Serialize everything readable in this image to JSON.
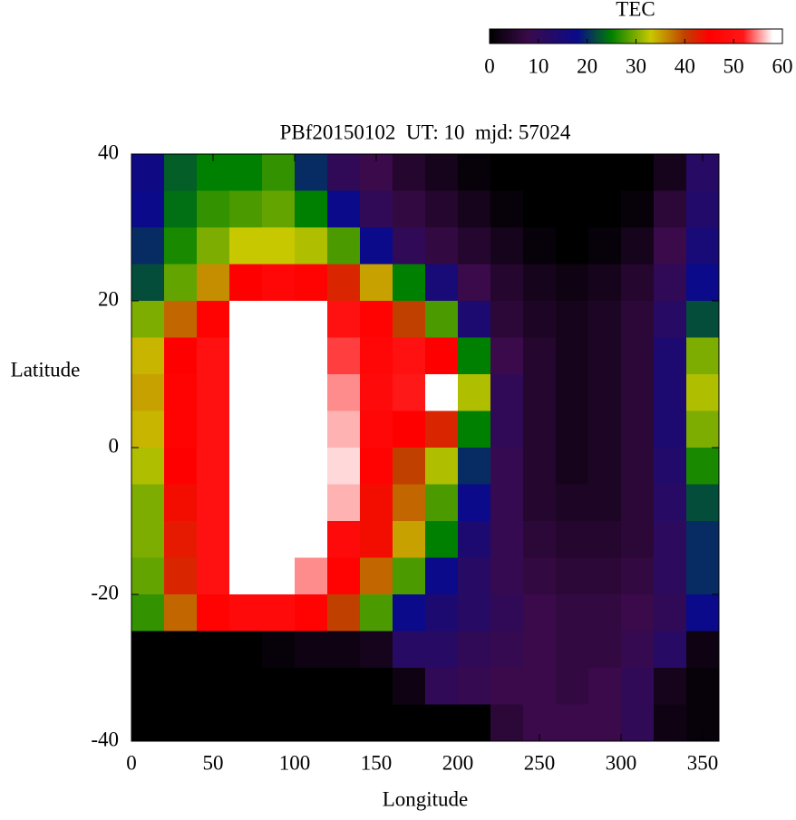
{
  "chart_data": {
    "type": "heatmap",
    "title": "PBf20150102  UT: 10  mjd: 57024",
    "x_label": "Longitude",
    "y_label": "Latitude",
    "x": [
      10,
      30,
      50,
      70,
      90,
      110,
      130,
      150,
      170,
      190,
      210,
      230,
      250,
      270,
      290,
      310,
      330,
      350
    ],
    "y": [
      37.5,
      32.5,
      27.5,
      22.5,
      17.5,
      12.5,
      7.5,
      2.5,
      -2.5,
      -7.5,
      -12.5,
      -17.5,
      -22.5,
      -27.5,
      -32.5,
      -37.5
    ],
    "xlim": [
      0,
      360
    ],
    "xticks": [
      0,
      50,
      100,
      150,
      200,
      250,
      300,
      350
    ],
    "ylim": [
      -40,
      40
    ],
    "yticks": [
      -40,
      -20,
      0,
      20,
      40
    ],
    "values": [
      [
        17,
        23,
        25,
        25,
        27,
        20,
        10,
        8,
        5,
        3,
        1,
        0,
        0,
        0,
        0,
        0,
        3,
        12
      ],
      [
        18,
        24,
        27,
        28,
        29,
        25,
        18,
        10,
        7,
        5,
        3,
        1,
        0,
        0,
        0,
        1,
        6,
        13
      ],
      [
        20,
        26,
        30,
        33,
        33,
        32,
        28,
        18,
        10,
        7,
        5,
        3,
        1,
        0,
        1,
        3,
        8,
        15
      ],
      [
        22,
        29,
        36,
        45,
        47,
        46,
        42,
        35,
        25,
        15,
        8,
        5,
        3,
        2,
        3,
        5,
        10,
        18
      ],
      [
        30,
        38,
        46,
        58,
        60,
        60,
        50,
        46,
        40,
        28,
        14,
        6,
        4,
        3,
        4,
        6,
        12,
        22
      ],
      [
        34,
        45,
        50,
        60,
        60,
        60,
        53,
        47,
        50,
        45,
        25,
        8,
        5,
        3,
        4,
        6,
        14,
        30
      ],
      [
        35,
        46,
        50,
        60,
        60,
        60,
        55,
        48,
        52,
        58,
        32,
        10,
        5,
        3,
        4,
        6,
        14,
        32
      ],
      [
        34,
        46,
        50,
        60,
        60,
        60,
        56,
        47,
        45,
        42,
        25,
        10,
        5,
        3,
        4,
        6,
        14,
        30
      ],
      [
        32,
        45,
        50,
        60,
        60,
        60,
        57,
        46,
        40,
        32,
        20,
        9,
        5,
        3,
        4,
        6,
        13,
        26
      ],
      [
        30,
        44,
        50,
        60,
        60,
        60,
        56,
        44,
        38,
        28,
        18,
        9,
        5,
        4,
        4,
        6,
        12,
        22
      ],
      [
        30,
        43,
        50,
        60,
        60,
        58,
        48,
        44,
        35,
        25,
        14,
        9,
        6,
        5,
        5,
        6,
        11,
        20
      ],
      [
        29,
        42,
        50,
        58,
        60,
        55,
        46,
        38,
        28,
        18,
        12,
        9,
        7,
        6,
        6,
        7,
        11,
        20
      ],
      [
        27,
        38,
        46,
        48,
        48,
        46,
        40,
        28,
        18,
        14,
        12,
        10,
        8,
        7,
        7,
        8,
        10,
        18
      ],
      [
        0,
        0,
        0,
        0,
        1,
        2,
        2,
        3,
        12,
        12,
        10,
        9,
        8,
        7,
        7,
        9,
        12,
        2
      ],
      [
        0,
        0,
        0,
        0,
        0,
        0,
        0,
        0,
        2,
        10,
        9,
        8,
        8,
        7,
        8,
        10,
        3,
        1
      ],
      [
        0,
        0,
        0,
        0,
        0,
        0,
        0,
        0,
        0,
        0,
        0,
        6,
        8,
        8,
        8,
        10,
        2,
        1
      ]
    ],
    "colorbar": {
      "title": "TEC",
      "lim": [
        0,
        60
      ],
      "ticks": [
        0,
        10,
        20,
        30,
        40,
        50,
        60
      ]
    },
    "colormap": [
      [
        0,
        "#000000"
      ],
      [
        8,
        "#3a0a4a"
      ],
      [
        18,
        "#0a0a8a"
      ],
      [
        25,
        "#008000"
      ],
      [
        33,
        "#c8c800"
      ],
      [
        40,
        "#c04000"
      ],
      [
        45,
        "#ff0000"
      ],
      [
        52,
        "#ff1818"
      ],
      [
        58,
        "#ffffff"
      ],
      [
        60,
        "#ffffff"
      ]
    ]
  }
}
